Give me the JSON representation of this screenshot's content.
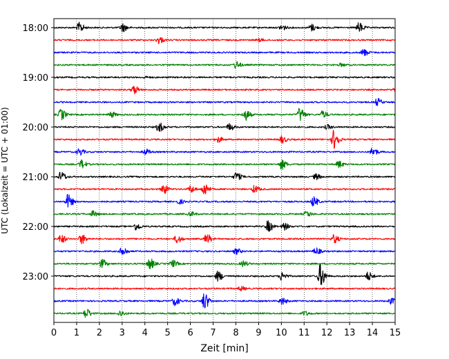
{
  "chart_data": {
    "type": "line",
    "xlabel": "Zeit  [min]",
    "ylabel": "UTC (Lokalzeit = UTC + 01:00)",
    "xlim": [
      0,
      15
    ],
    "x_ticks": [
      "0",
      "1",
      "2",
      "3",
      "4",
      "5",
      "6",
      "7",
      "8",
      "9",
      "10",
      "11",
      "12",
      "13",
      "14",
      "15"
    ],
    "y_tick_labels": [
      "18:00",
      "19:00",
      "20:00",
      "21:00",
      "22:00",
      "23:00"
    ],
    "grid": "vertical dotted",
    "trace_interval_minutes": 15,
    "first_trace_start": "18:00",
    "trace_count": 24,
    "series": [
      {
        "color": "#000000",
        "events": [
          [
            1.1,
            7
          ],
          [
            3.0,
            6
          ],
          [
            10.0,
            4
          ],
          [
            11.3,
            5
          ],
          [
            13.4,
            7
          ]
        ]
      },
      {
        "color": "#ff0000",
        "events": [
          [
            4.6,
            5
          ],
          [
            9.0,
            2
          ]
        ]
      },
      {
        "color": "#0000ff",
        "events": [
          [
            13.6,
            5
          ]
        ]
      },
      {
        "color": "#008000",
        "events": [
          [
            8.0,
            5
          ],
          [
            12.6,
            2
          ]
        ]
      },
      {
        "color": "#000000",
        "events": [
          [
            4.0,
            1
          ]
        ]
      },
      {
        "color": "#ff0000",
        "events": [
          [
            3.5,
            6
          ],
          [
            15.0,
            3
          ]
        ]
      },
      {
        "color": "#0000ff",
        "events": [
          [
            14.2,
            5
          ]
        ]
      },
      {
        "color": "#008000",
        "events": [
          [
            0.3,
            8
          ],
          [
            2.5,
            4
          ],
          [
            8.4,
            8
          ],
          [
            10.8,
            10
          ],
          [
            11.8,
            5
          ]
        ]
      },
      {
        "color": "#000000",
        "events": [
          [
            4.6,
            7
          ],
          [
            7.7,
            5
          ],
          [
            12.0,
            3
          ]
        ]
      },
      {
        "color": "#ff0000",
        "events": [
          [
            7.2,
            4
          ],
          [
            10.0,
            5
          ],
          [
            12.3,
            14
          ]
        ]
      },
      {
        "color": "#0000ff",
        "events": [
          [
            1.1,
            5
          ],
          [
            4.0,
            4
          ],
          [
            14.0,
            6
          ]
        ]
      },
      {
        "color": "#008000",
        "events": [
          [
            1.2,
            6
          ],
          [
            10.0,
            7
          ],
          [
            12.5,
            5
          ]
        ]
      },
      {
        "color": "#000000",
        "events": [
          [
            0.3,
            7
          ],
          [
            8.0,
            6
          ],
          [
            11.5,
            4
          ]
        ]
      },
      {
        "color": "#ff0000",
        "events": [
          [
            4.8,
            7
          ],
          [
            6.0,
            5
          ],
          [
            6.6,
            9
          ],
          [
            8.8,
            5
          ]
        ]
      },
      {
        "color": "#0000ff",
        "events": [
          [
            0.6,
            10
          ],
          [
            5.5,
            3
          ],
          [
            11.4,
            7
          ]
        ]
      },
      {
        "color": "#008000",
        "events": [
          [
            1.7,
            4
          ],
          [
            6.0,
            3
          ],
          [
            11.1,
            4
          ]
        ]
      },
      {
        "color": "#000000",
        "events": [
          [
            3.6,
            5
          ],
          [
            9.4,
            8
          ],
          [
            10.1,
            5
          ]
        ]
      },
      {
        "color": "#ff0000",
        "events": [
          [
            0.3,
            6
          ],
          [
            1.2,
            7
          ],
          [
            5.4,
            6
          ],
          [
            6.7,
            7
          ],
          [
            12.3,
            6
          ]
        ]
      },
      {
        "color": "#0000ff",
        "events": [
          [
            3.0,
            7
          ],
          [
            8.0,
            4
          ],
          [
            11.5,
            5
          ]
        ]
      },
      {
        "color": "#008000",
        "events": [
          [
            2.1,
            6
          ],
          [
            4.2,
            8
          ],
          [
            5.2,
            5
          ],
          [
            8.3,
            4
          ]
        ]
      },
      {
        "color": "#000000",
        "events": [
          [
            7.2,
            7
          ],
          [
            10.0,
            6
          ],
          [
            11.7,
            16
          ],
          [
            13.8,
            6
          ]
        ]
      },
      {
        "color": "#ff0000",
        "events": [
          [
            8.2,
            3
          ]
        ]
      },
      {
        "color": "#0000ff",
        "events": [
          [
            5.3,
            6
          ],
          [
            6.6,
            12
          ],
          [
            10.0,
            5
          ],
          [
            14.8,
            4
          ]
        ]
      },
      {
        "color": "#008000",
        "events": [
          [
            1.4,
            7
          ],
          [
            2.9,
            4
          ],
          [
            11.0,
            3
          ]
        ]
      }
    ]
  }
}
